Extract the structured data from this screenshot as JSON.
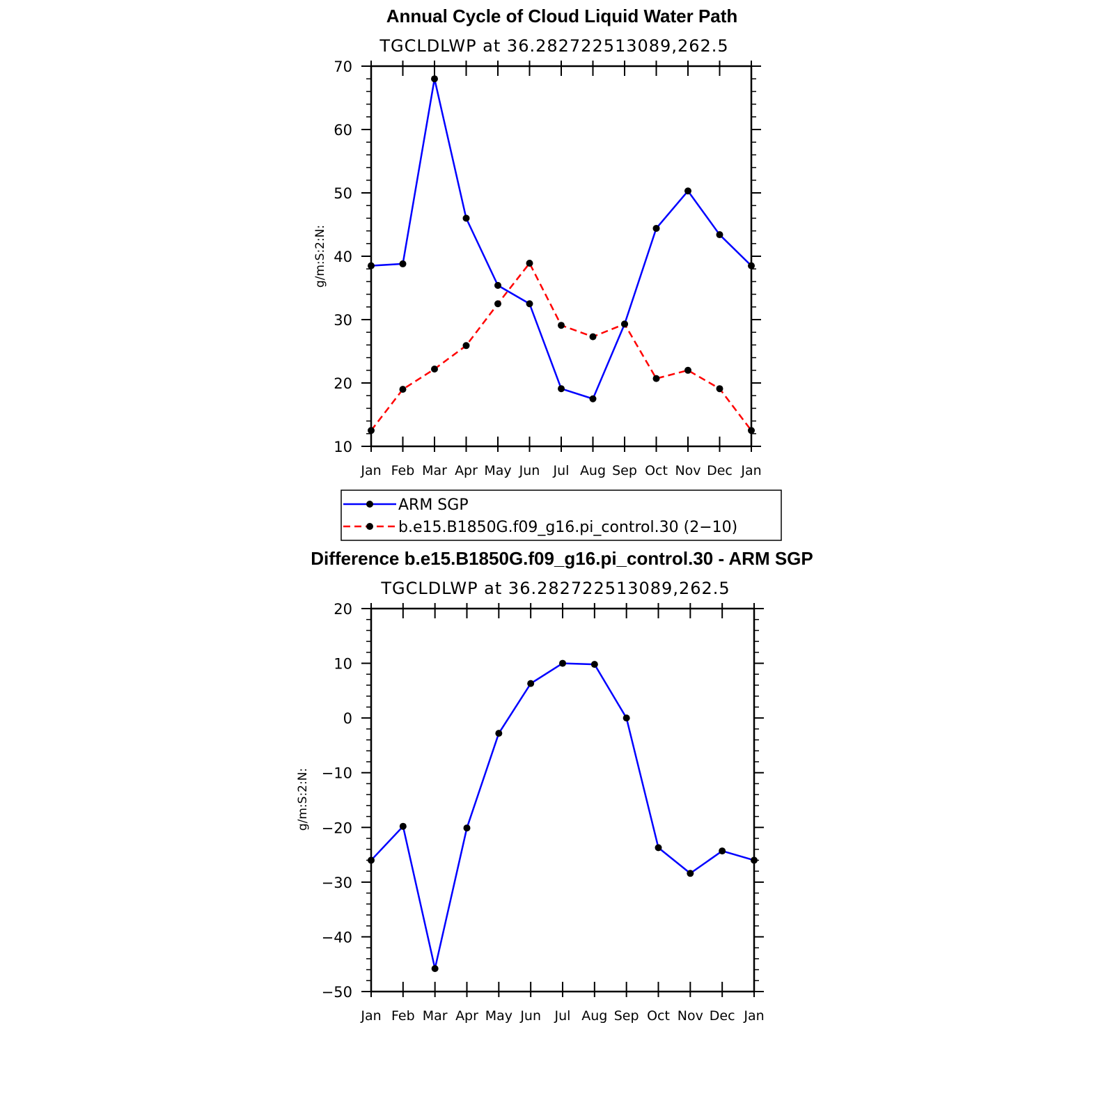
{
  "chart_data": [
    {
      "type": "line",
      "title": "Annual Cycle of Cloud Liquid Water Path",
      "subtitle": "TGCLDLWP  at  36.282722513089,262.5",
      "ylabel": "g/m:S:2:N:",
      "xlabel": "",
      "categories": [
        "Jan",
        "Feb",
        "Mar",
        "Apr",
        "May",
        "Jun",
        "Jul",
        "Aug",
        "Sep",
        "Oct",
        "Nov",
        "Dec",
        "Jan"
      ],
      "ylim": [
        10,
        70
      ],
      "yticks": [
        "10",
        "20",
        "30",
        "40",
        "50",
        "60",
        "70"
      ],
      "series": [
        {
          "name": "ARM  SGP",
          "color": "#0000ff",
          "dash": "solid",
          "values": [
            38.5,
            38.8,
            68,
            46,
            35.4,
            32.5,
            19.1,
            17.5,
            29.3,
            44.4,
            50.3,
            43.4,
            38.5
          ]
        },
        {
          "name": "b.e15.B1850G.f09_g16.pi_control.30 (2−10)",
          "color": "#ff0000",
          "dash": "dashed",
          "values": [
            12.5,
            19,
            22.2,
            25.9,
            32.5,
            38.9,
            29.1,
            27.3,
            29.3,
            20.7,
            22,
            19.1,
            12.5
          ]
        }
      ],
      "legend": "below"
    },
    {
      "type": "line",
      "title": "Difference b.e15.B1850G.f09_g16.pi_control.30 - ARM SGP",
      "subtitle": "TGCLDLWP  at  36.282722513089,262.5",
      "ylabel": "g/m:S:2:N:",
      "xlabel": "",
      "categories": [
        "Jan",
        "Feb",
        "Mar",
        "Apr",
        "May",
        "Jun",
        "Jul",
        "Aug",
        "Sep",
        "Oct",
        "Nov",
        "Dec",
        "Jan"
      ],
      "ylim": [
        -50,
        20
      ],
      "yticks": [
        "−50",
        "−40",
        "−30",
        "−20",
        "−10",
        "0",
        "10",
        "20"
      ],
      "series": [
        {
          "name": "Difference",
          "color": "#0000ff",
          "dash": "solid",
          "values": [
            -26,
            -19.8,
            -45.8,
            -20.1,
            -2.8,
            6.3,
            10,
            9.8,
            0,
            -23.7,
            -28.4,
            -24.3,
            -26
          ]
        }
      ]
    }
  ]
}
